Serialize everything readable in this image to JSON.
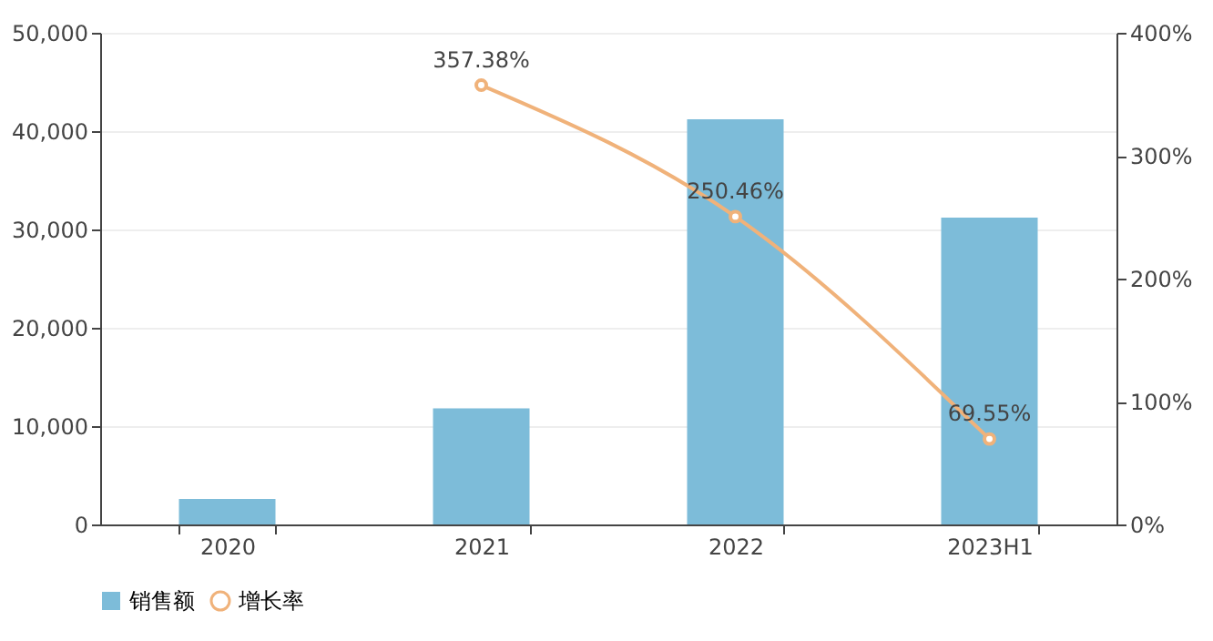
{
  "chart_data": {
    "type": "bar",
    "categories": [
      "2020",
      "2021",
      "2022",
      "2023H1"
    ],
    "series": [
      {
        "name": "销售额",
        "color": "#7dbcd9",
        "values": [
          2600,
          11800,
          41200,
          31200
        ]
      },
      {
        "name": "增长率",
        "type": "line",
        "axis": "y2",
        "color": "#f0b27a",
        "marker": "circle",
        "values": [
          null,
          357.38,
          250.46,
          69.55
        ],
        "value_labels": [
          null,
          "357.38%",
          "250.46%",
          "69.55%"
        ]
      }
    ],
    "ylim": [
      0,
      50000
    ],
    "yticks": [
      {
        "value": 0,
        "label": "0"
      },
      {
        "value": 10000,
        "label": "10,000"
      },
      {
        "value": 20000,
        "label": "20,000"
      },
      {
        "value": 30000,
        "label": "30,000"
      },
      {
        "value": 40000,
        "label": "40,000"
      },
      {
        "value": 50000,
        "label": "50,000"
      }
    ],
    "y2lim": [
      0,
      400
    ],
    "y2ticks": [
      {
        "value": 0,
        "label": "0%"
      },
      {
        "value": 100,
        "label": "100%"
      },
      {
        "value": 200,
        "label": "200%"
      },
      {
        "value": 300,
        "label": "300%"
      },
      {
        "value": 400,
        "label": "400%"
      }
    ],
    "grid": "y",
    "legend": "bottom"
  }
}
